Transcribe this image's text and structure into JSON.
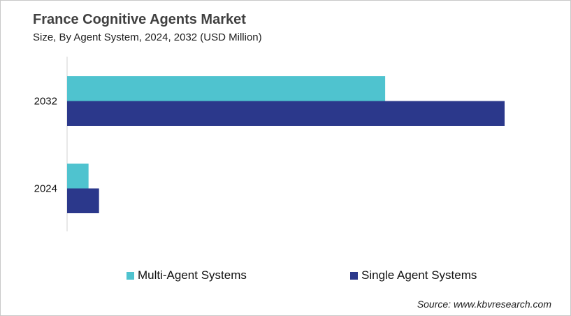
{
  "chart_data": {
    "type": "bar",
    "orientation": "horizontal",
    "title": "France Cognitive Agents Market",
    "subtitle": "Size, By Agent System, 2024, 2032 (USD Million)",
    "categories": [
      "2032",
      "2024"
    ],
    "series": [
      {
        "name": "Multi-Agent Systems",
        "color": "#4fc3cf",
        "values": [
          72.7,
          4.9
        ]
      },
      {
        "name": "Single Agent Systems",
        "color": "#2b388b",
        "values": [
          100,
          7.3
        ]
      }
    ],
    "xlim": [
      0,
      100
    ],
    "value_axis_shown": false,
    "grid": false,
    "legend_position": "bottom",
    "source": "Source: www.kbvresearch.com"
  }
}
